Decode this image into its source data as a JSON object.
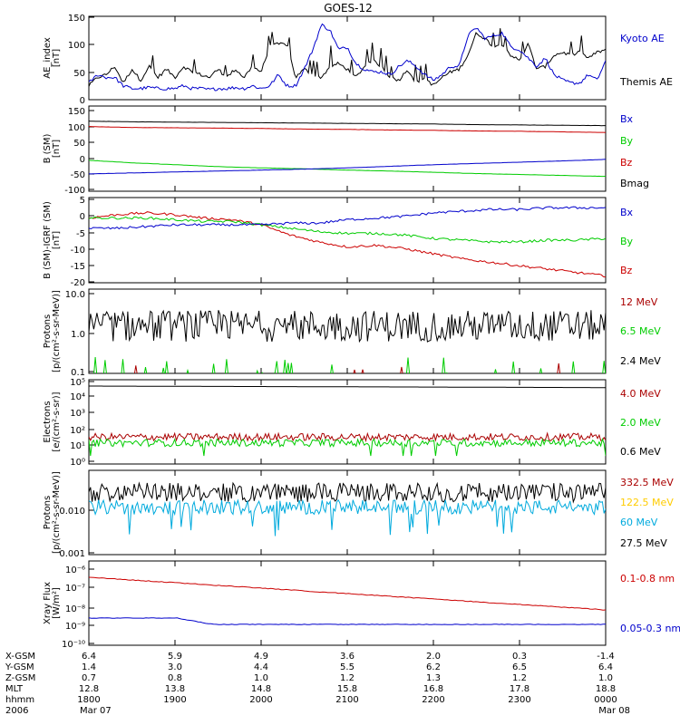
{
  "chart_data": {
    "title": "GOES-12",
    "type": "line",
    "x_time_range": [
      "1800",
      "0000"
    ],
    "panels": [
      {
        "id": "ae",
        "ylabel": [
          "AE_index",
          "[nT]"
        ],
        "scale": "linear",
        "ylim": [
          0,
          150
        ],
        "yticks": [
          "0",
          "50",
          "100",
          "150"
        ],
        "series": [
          {
            "name": "Kyoto AE",
            "color": "#0000cc",
            "values": [
              30,
              45,
              40,
              40,
              25,
              20,
              20,
              22,
              20,
              20,
              20,
              25,
              20,
              20,
              18,
              20,
              20,
              22,
              20,
              25,
              20,
              25,
              45,
              25,
              25,
              55,
              90,
              135,
              125,
              90,
              95,
              65,
              55,
              50,
              50,
              45,
              60,
              70,
              60,
              45,
              35,
              45,
              60,
              60,
              115,
              130,
              110,
              115,
              120,
              95,
              90,
              75,
              60,
              75,
              45,
              35,
              30,
              30,
              45,
              35,
              70
            ]
          },
          {
            "name": "Themis AE",
            "color": "#000000",
            "values": [
              25,
              40,
              45,
              60,
              30,
              55,
              35,
              60,
              40,
              55,
              40,
              60,
              50,
              45,
              40,
              55,
              40,
              55,
              40,
              60,
              50,
              95,
              100,
              100,
              40,
              55,
              45,
              40,
              60,
              65,
              55,
              40,
              60,
              70,
              60,
              40,
              35,
              55,
              30,
              40,
              25,
              40,
              50,
              55,
              80,
              120,
              110,
              95,
              100,
              80,
              70,
              100,
              55,
              60,
              80,
              85,
              80,
              85,
              75,
              85,
              90
            ]
          }
        ]
      },
      {
        "id": "bsm",
        "ylabel": [
          "B (SM)",
          "[nT]"
        ],
        "scale": "linear",
        "ylim": [
          -110,
          160
        ],
        "yticks": [
          "-100",
          "-50",
          "0",
          "50",
          "100",
          "150"
        ],
        "series": [
          {
            "name": "Bx",
            "color": "#0000cc",
            "values": [
              -55,
              -52,
              -49,
              -46,
              -43,
              -40,
              -36,
              -31,
              -26,
              -22,
              -18,
              -14,
              -9
            ]
          },
          {
            "name": "By",
            "color": "#00cc00",
            "values": [
              -12,
              -20,
              -26,
              -32,
              -36,
              -39,
              -43,
              -46,
              -50,
              -54,
              -57,
              -60,
              -63
            ]
          },
          {
            "name": "Bz",
            "color": "#cc0000",
            "values": [
              95,
              92,
              91,
              90,
              89,
              87,
              86,
              84,
              83,
              81,
              80,
              78,
              76
            ]
          },
          {
            "name": "Bmag",
            "color": "#000000",
            "values": [
              112,
              110,
              109,
              108,
              107,
              106,
              105,
              104,
              103,
              101,
              100,
              99,
              98
            ]
          }
        ]
      },
      {
        "id": "bsmigrf",
        "ylabel": [
          "B (SM)-IGRF (SM)",
          "[nT]"
        ],
        "scale": "linear",
        "ylim": [
          -20,
          5
        ],
        "yticks": [
          "-20",
          "-15",
          "-10",
          "-5",
          "0",
          "5"
        ],
        "series": [
          {
            "name": "Bx",
            "color": "#0000cc",
            "values": [
              -4,
              -4,
              -3.5,
              -3,
              -3,
              -3,
              -3,
              -2.5,
              -2.5,
              -1.5,
              -1,
              -0.5,
              0.5,
              1,
              1.5,
              1.5,
              2,
              2,
              2
            ]
          },
          {
            "name": "By",
            "color": "#00cc00",
            "values": [
              -1,
              -1,
              -1,
              -1.5,
              -2,
              -2,
              -3,
              -4,
              -5,
              -5.5,
              -5.5,
              -6,
              -7,
              -7.5,
              -8,
              -8,
              -7.5,
              -7.5,
              -7
            ]
          },
          {
            "name": "Bz",
            "color": "#cc0000",
            "values": [
              -1,
              0,
              0.5,
              0,
              -1,
              -1.5,
              -3,
              -6,
              -8,
              -9.5,
              -9,
              -10,
              -11.5,
              -13,
              -14,
              -15,
              -16,
              -17,
              -18
            ]
          }
        ]
      },
      {
        "id": "protons1",
        "ylabel": [
          "Protons",
          "[p/(cm²-s-sr-MeV)]"
        ],
        "scale": "log",
        "ylim": [
          0.1,
          10
        ],
        "yticks": [
          "0.1",
          "1.0",
          "10.0"
        ],
        "series": [
          {
            "name": "12 MeV",
            "color": "#aa0000"
          },
          {
            "name": "6.5 MeV",
            "color": "#00cc00"
          },
          {
            "name": "2.4 MeV",
            "color": "#000000"
          }
        ]
      },
      {
        "id": "electrons",
        "ylabel": [
          "Electrons",
          "[e/(cm²-s-sr)]"
        ],
        "scale": "log",
        "ylim": [
          1,
          100000
        ],
        "yticks": [
          "10⁰",
          "10¹",
          "10²",
          "10³",
          "10⁴",
          "10⁵"
        ],
        "series": [
          {
            "name": "4.0 MeV",
            "color": "#aa0000",
            "level": 40
          },
          {
            "name": "2.0 MeV",
            "color": "#00cc00",
            "level": 18
          },
          {
            "name": "0.6 MeV",
            "color": "#000000",
            "level": 40000
          }
        ]
      },
      {
        "id": "protons2",
        "ylabel": [
          "Protons",
          "[p/(cm²-s-sr-MeV)]"
        ],
        "scale": "log",
        "ylim": [
          0.001,
          0.1
        ],
        "yticks": [
          "0.001",
          "0.010"
        ],
        "series": [
          {
            "name": "332.5 MeV",
            "color": "#aa0000"
          },
          {
            "name": "122.5 MeV",
            "color": "#ffcc00"
          },
          {
            "name": "60 MeV",
            "color": "#00aadd"
          },
          {
            "name": "27.5 MeV",
            "color": "#000000"
          }
        ]
      },
      {
        "id": "xray",
        "ylabel": [
          "Xray Flux",
          "[W/m²]"
        ],
        "scale": "log",
        "ylim": [
          1e-10,
          1e-08
        ],
        "yticks": [
          "10⁻¹⁰",
          "10⁻⁹",
          "10⁻⁸",
          "10⁻⁷",
          "10⁻⁶"
        ],
        "series": [
          {
            "name": "0.1-0.8 nm",
            "color": "#cc0000"
          },
          {
            "name": "0.05-0.3 nm",
            "color": "#0000cc"
          }
        ]
      }
    ],
    "footer": {
      "labels": [
        "X-GSM",
        "Y-GSM",
        "Z-GSM",
        "MLT",
        "hhmm",
        "2006"
      ],
      "columns": [
        {
          "x_gsm": "6.4",
          "y_gsm": "1.4",
          "z_gsm": "0.7",
          "mlt": "12.8",
          "hhmm": "1800",
          "date": "Mar 07"
        },
        {
          "x_gsm": "5.9",
          "y_gsm": "3.0",
          "z_gsm": "0.8",
          "mlt": "13.8",
          "hhmm": "1900",
          "date": ""
        },
        {
          "x_gsm": "4.9",
          "y_gsm": "4.4",
          "z_gsm": "1.0",
          "mlt": "14.8",
          "hhmm": "2000",
          "date": ""
        },
        {
          "x_gsm": "3.6",
          "y_gsm": "5.5",
          "z_gsm": "1.2",
          "mlt": "15.8",
          "hhmm": "2100",
          "date": ""
        },
        {
          "x_gsm": "2.0",
          "y_gsm": "6.2",
          "z_gsm": "1.3",
          "mlt": "16.8",
          "hhmm": "2200",
          "date": ""
        },
        {
          "x_gsm": "0.3",
          "y_gsm": "6.5",
          "z_gsm": "1.2",
          "mlt": "17.8",
          "hhmm": "2300",
          "date": ""
        },
        {
          "x_gsm": "-1.4",
          "y_gsm": "6.4",
          "z_gsm": "1.0",
          "mlt": "18.8",
          "hhmm": "0000",
          "date": "Mar 08"
        }
      ]
    }
  }
}
